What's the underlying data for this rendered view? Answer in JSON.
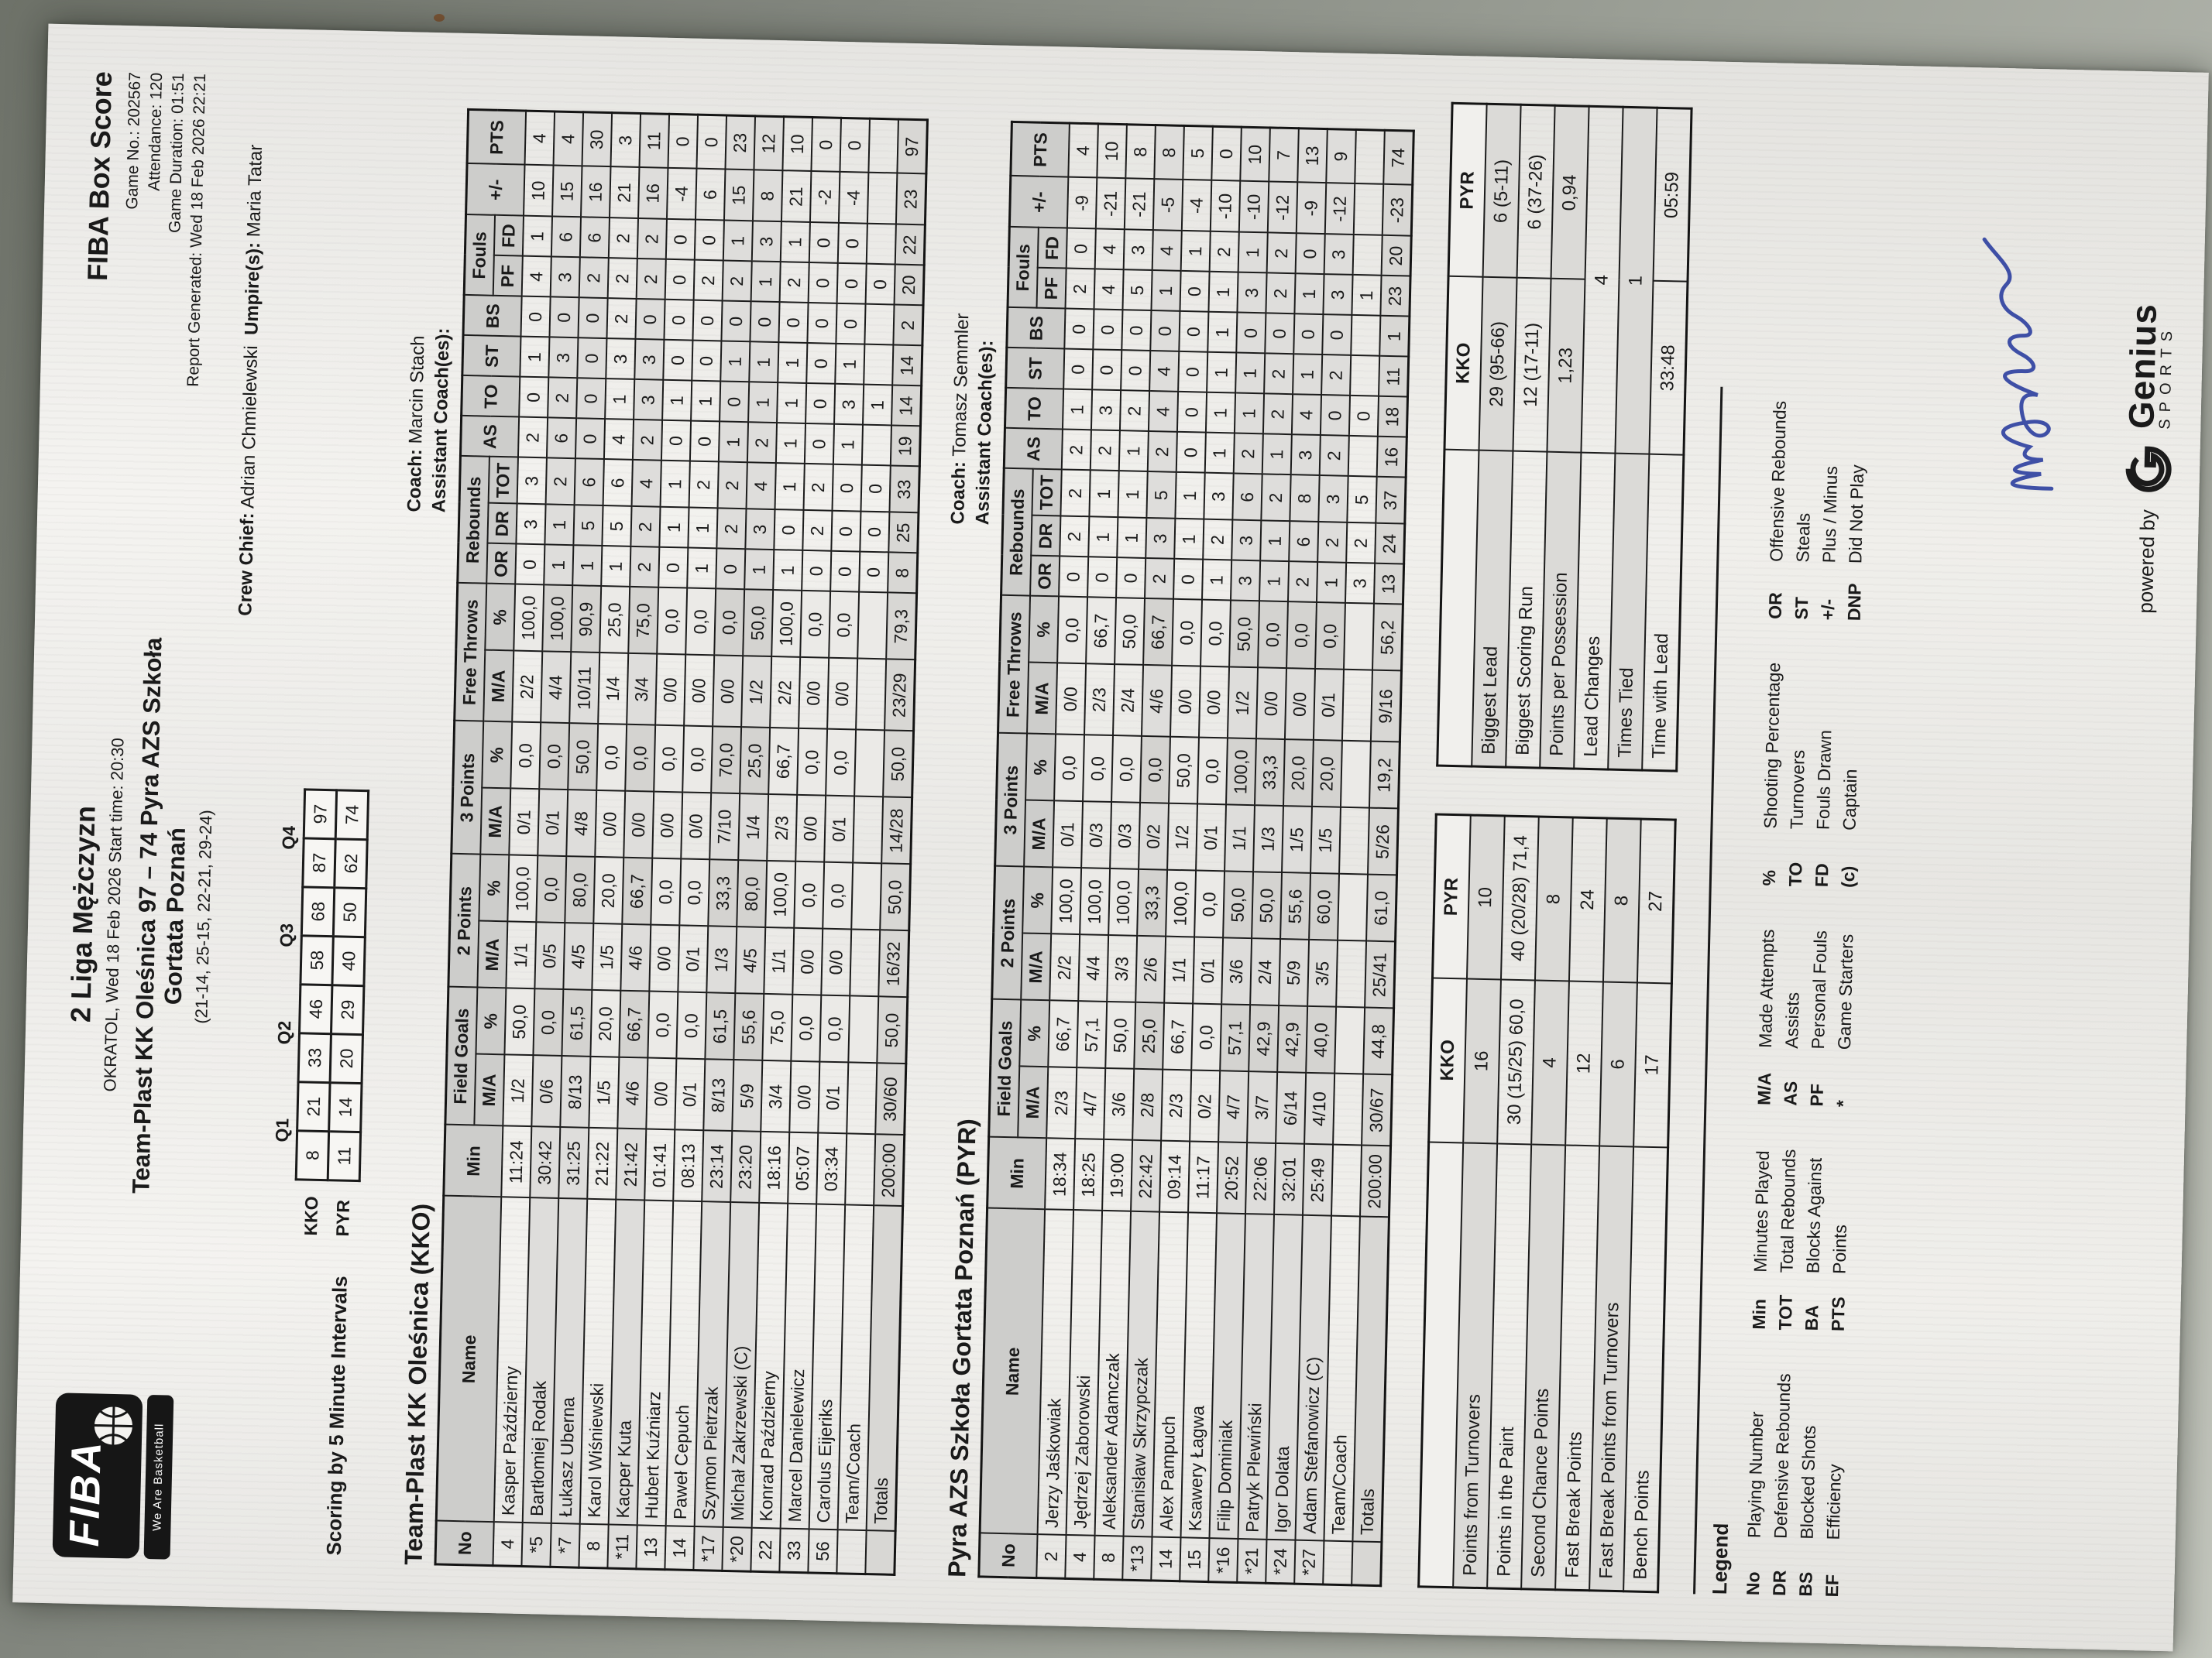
{
  "page": {
    "league": "2 Liga Mężczyzn",
    "venue_line": "OKRATOL, Wed 18 Feb 2026 Start time: 20:30",
    "match_line": "Team-Plast KK Oleśnica 97 – 74 Pyra AZS Szkoła",
    "match_line2": "Gortata Poznań",
    "quarters_line": "(21-14, 25-15, 22-21, 29-24)",
    "report_title": "FIBA Box Score",
    "game_no": "Game No.: 202567",
    "attendance": "Attendance: 120",
    "duration": "Game Duration: 01:51",
    "generated": "Report Generated: Wed 18 Feb 2026 22:21",
    "crew_label": "Crew Chief:",
    "crew_name": "Adrian Chmielewski",
    "umpire_label": "Umpire(s):",
    "umpire_name": "Maria Tatar"
  },
  "logo": {
    "fiba": "FIBA",
    "tagline": "We Are Basketball"
  },
  "footer": {
    "powered": "powered by",
    "brand": "Genius",
    "sub": "SPORTS"
  },
  "intervals": {
    "title": "Scoring by 5 Minute Intervals",
    "quarters": [
      "Q1",
      "Q2",
      "Q3",
      "Q4"
    ],
    "rows": [
      {
        "team": "KKO",
        "vals": [
          "8",
          "21",
          "33",
          "46",
          "58",
          "68",
          "87",
          "97"
        ]
      },
      {
        "team": "PYR",
        "vals": [
          "11",
          "14",
          "20",
          "29",
          "40",
          "50",
          "62",
          "74"
        ]
      }
    ]
  },
  "box": {
    "h_no": "No",
    "h_name": "Name",
    "h_min": "Min",
    "h_fg": "Field Goals",
    "h_2p": "2 Points",
    "h_3p": "3 Points",
    "h_ft": "Free Throws",
    "h_ma": "M/A",
    "h_pct": "%",
    "h_reb": "Rebounds",
    "h_or": "OR",
    "h_dr": "DR",
    "h_tot": "TOT",
    "h_as": "AS",
    "h_to": "TO",
    "h_st": "ST",
    "h_bs": "BS",
    "h_fouls": "Fouls",
    "h_pf": "PF",
    "h_fd": "FD",
    "h_pm": "+/-",
    "h_pts": "PTS",
    "row_keys": [
      "no",
      "name",
      "min",
      "fg",
      "fgp",
      "p2",
      "p2p",
      "p3",
      "p3p",
      "ft",
      "ftp",
      "or",
      "dr",
      "tot",
      "as",
      "to",
      "st",
      "bs",
      "pf",
      "fd",
      "pm",
      "pts"
    ],
    "pct_keys": [
      "fgp",
      "p2p",
      "p3p",
      "ftp"
    ]
  },
  "kko": {
    "heading": "Team-Plast KK Oleśnica (KKO)",
    "coach_label": "Coach:",
    "coach": "Marcin Stach",
    "assistant_label": "Assistant Coach(es):",
    "players": [
      {
        "cls": "",
        "no": "4",
        "name": "Kasper Październy",
        "min": "11:24",
        "fg": "1/2",
        "fgp": "50,0",
        "p2": "1/1",
        "p2p": "100,0",
        "p3": "0/1",
        "p3p": "0,0",
        "ft": "2/2",
        "ftp": "100,0",
        "or": "0",
        "dr": "3",
        "tot": "3",
        "as": "2",
        "to": "0",
        "st": "1",
        "bs": "0",
        "pf": "4",
        "fd": "1",
        "pm": "10",
        "pts": "4"
      },
      {
        "cls": "starter",
        "no": "*5",
        "name": "Bartłomiej Rodak",
        "min": "30:42",
        "fg": "0/6",
        "fgp": "0,0",
        "p2": "0/5",
        "p2p": "0,0",
        "p3": "0/1",
        "p3p": "0,0",
        "ft": "4/4",
        "ftp": "100,0",
        "or": "1",
        "dr": "1",
        "tot": "2",
        "as": "6",
        "to": "2",
        "st": "3",
        "bs": "0",
        "pf": "3",
        "fd": "6",
        "pm": "15",
        "pts": "4"
      },
      {
        "cls": "starter",
        "no": "*7",
        "name": "Łukasz Uberna",
        "min": "31:25",
        "fg": "8/13",
        "fgp": "61,5",
        "p2": "4/5",
        "p2p": "80,0",
        "p3": "4/8",
        "p3p": "50,0",
        "ft": "10/11",
        "ftp": "90,9",
        "or": "1",
        "dr": "5",
        "tot": "6",
        "as": "0",
        "to": "0",
        "st": "0",
        "bs": "0",
        "pf": "2",
        "fd": "6",
        "pm": "16",
        "pts": "30"
      },
      {
        "cls": "",
        "no": "8",
        "name": "Karol Wiśniewski",
        "min": "21:22",
        "fg": "1/5",
        "fgp": "20,0",
        "p2": "1/5",
        "p2p": "20,0",
        "p3": "0/0",
        "p3p": "0,0",
        "ft": "1/4",
        "ftp": "25,0",
        "or": "1",
        "dr": "5",
        "tot": "6",
        "as": "4",
        "to": "1",
        "st": "3",
        "bs": "2",
        "pf": "2",
        "fd": "2",
        "pm": "21",
        "pts": "3"
      },
      {
        "cls": "starter",
        "no": "*11",
        "name": "Kacper Kuta",
        "min": "21:42",
        "fg": "4/6",
        "fgp": "66,7",
        "p2": "4/6",
        "p2p": "66,7",
        "p3": "0/0",
        "p3p": "0,0",
        "ft": "3/4",
        "ftp": "75,0",
        "or": "2",
        "dr": "2",
        "tot": "4",
        "as": "2",
        "to": "3",
        "st": "3",
        "bs": "0",
        "pf": "2",
        "fd": "2",
        "pm": "16",
        "pts": "11"
      },
      {
        "cls": "",
        "no": "13",
        "name": "Hubert Kuźniarz",
        "min": "01:41",
        "fg": "0/0",
        "fgp": "0,0",
        "p2": "0/0",
        "p2p": "0,0",
        "p3": "0/0",
        "p3p": "0,0",
        "ft": "0/0",
        "ftp": "0,0",
        "or": "0",
        "dr": "1",
        "tot": "1",
        "as": "0",
        "to": "1",
        "st": "0",
        "bs": "0",
        "pf": "0",
        "fd": "0",
        "pm": "-4",
        "pts": "0"
      },
      {
        "cls": "",
        "no": "14",
        "name": "Paweł Cepuch",
        "min": "08:13",
        "fg": "0/1",
        "fgp": "0,0",
        "p2": "0/1",
        "p2p": "0,0",
        "p3": "0/0",
        "p3p": "0,0",
        "ft": "0/0",
        "ftp": "0,0",
        "or": "1",
        "dr": "1",
        "tot": "2",
        "as": "0",
        "to": "1",
        "st": "0",
        "bs": "0",
        "pf": "2",
        "fd": "0",
        "pm": "6",
        "pts": "0"
      },
      {
        "cls": "starter",
        "no": "*17",
        "name": "Szymon Pietrzak",
        "min": "23:14",
        "fg": "8/13",
        "fgp": "61,5",
        "p2": "1/3",
        "p2p": "33,3",
        "p3": "7/10",
        "p3p": "70,0",
        "ft": "0/0",
        "ftp": "0,0",
        "or": "0",
        "dr": "2",
        "tot": "2",
        "as": "1",
        "to": "0",
        "st": "1",
        "bs": "0",
        "pf": "2",
        "fd": "1",
        "pm": "15",
        "pts": "23"
      },
      {
        "cls": "starter",
        "no": "*20",
        "name": "Michał Zakrzewski (C)",
        "min": "23:20",
        "fg": "5/9",
        "fgp": "55,6",
        "p2": "4/5",
        "p2p": "80,0",
        "p3": "1/4",
        "p3p": "25,0",
        "ft": "1/2",
        "ftp": "50,0",
        "or": "1",
        "dr": "3",
        "tot": "4",
        "as": "2",
        "to": "1",
        "st": "1",
        "bs": "0",
        "pf": "1",
        "fd": "3",
        "pm": "8",
        "pts": "12"
      },
      {
        "cls": "",
        "no": "22",
        "name": "Konrad Październy",
        "min": "18:16",
        "fg": "3/4",
        "fgp": "75,0",
        "p2": "1/1",
        "p2p": "100,0",
        "p3": "2/3",
        "p3p": "66,7",
        "ft": "2/2",
        "ftp": "100,0",
        "or": "1",
        "dr": "0",
        "tot": "1",
        "as": "1",
        "to": "1",
        "st": "1",
        "bs": "0",
        "pf": "2",
        "fd": "1",
        "pm": "21",
        "pts": "10"
      },
      {
        "cls": "",
        "no": "33",
        "name": "Marcel Danielewicz",
        "min": "05:07",
        "fg": "0/0",
        "fgp": "0,0",
        "p2": "0/0",
        "p2p": "0,0",
        "p3": "0/0",
        "p3p": "0,0",
        "ft": "0/0",
        "ftp": "0,0",
        "or": "0",
        "dr": "2",
        "tot": "2",
        "as": "0",
        "to": "0",
        "st": "0",
        "bs": "0",
        "pf": "0",
        "fd": "0",
        "pm": "-2",
        "pts": "0"
      },
      {
        "cls": "",
        "no": "56",
        "name": "Carolus Eijeriks",
        "min": "03:34",
        "fg": "0/1",
        "fgp": "0,0",
        "p2": "0/0",
        "p2p": "0,0",
        "p3": "0/1",
        "p3p": "0,0",
        "ft": "0/0",
        "ftp": "0,0",
        "or": "0",
        "dr": "0",
        "tot": "0",
        "as": "1",
        "to": "3",
        "st": "1",
        "bs": "0",
        "pf": "0",
        "fd": "0",
        "pm": "-4",
        "pts": "0"
      },
      {
        "cls": "team-row",
        "no": "",
        "name": "Team/Coach",
        "min": "",
        "fg": "",
        "fgp": "",
        "p2": "",
        "p2p": "",
        "p3": "",
        "p3p": "",
        "ft": "",
        "ftp": "",
        "or": "0",
        "dr": "0",
        "tot": "0",
        "as": "",
        "to": "1",
        "st": "",
        "bs": "",
        "pf": "0",
        "fd": "",
        "pm": "",
        "pts": ""
      },
      {
        "cls": "totals",
        "no": "",
        "name": "Totals",
        "min": "200:00",
        "fg": "30/60",
        "fgp": "50,0",
        "p2": "16/32",
        "p2p": "50,0",
        "p3": "14/28",
        "p3p": "50,0",
        "ft": "23/29",
        "ftp": "79,3",
        "or": "8",
        "dr": "25",
        "tot": "33",
        "as": "19",
        "to": "14",
        "st": "14",
        "bs": "2",
        "pf": "20",
        "fd": "22",
        "pm": "23",
        "pts": "97"
      }
    ]
  },
  "pyr": {
    "heading": "Pyra AZS Szkoła Gortata Poznań (PYR)",
    "coach_label": "Coach:",
    "coach": "Tomasz Semmler",
    "assistant_label": "Assistant Coach(es):",
    "players": [
      {
        "cls": "",
        "no": "2",
        "name": "Jerzy Jaśkowiak",
        "min": "18:34",
        "fg": "2/3",
        "fgp": "66,7",
        "p2": "2/2",
        "p2p": "100,0",
        "p3": "0/1",
        "p3p": "0,0",
        "ft": "0/0",
        "ftp": "0,0",
        "or": "0",
        "dr": "2",
        "tot": "2",
        "as": "2",
        "to": "1",
        "st": "0",
        "bs": "0",
        "pf": "2",
        "fd": "0",
        "pm": "-9",
        "pts": "4"
      },
      {
        "cls": "",
        "no": "4",
        "name": "Jędrzej Zaborowski",
        "min": "18:25",
        "fg": "4/7",
        "fgp": "57,1",
        "p2": "4/4",
        "p2p": "100,0",
        "p3": "0/3",
        "p3p": "0,0",
        "ft": "2/3",
        "ftp": "66,7",
        "or": "0",
        "dr": "1",
        "tot": "1",
        "as": "2",
        "to": "3",
        "st": "0",
        "bs": "0",
        "pf": "4",
        "fd": "4",
        "pm": "-21",
        "pts": "10"
      },
      {
        "cls": "",
        "no": "8",
        "name": "Aleksander Adamczak",
        "min": "19:00",
        "fg": "3/6",
        "fgp": "50,0",
        "p2": "3/3",
        "p2p": "100,0",
        "p3": "0/3",
        "p3p": "0,0",
        "ft": "2/4",
        "ftp": "50,0",
        "or": "0",
        "dr": "1",
        "tot": "1",
        "as": "1",
        "to": "2",
        "st": "0",
        "bs": "0",
        "pf": "5",
        "fd": "3",
        "pm": "-21",
        "pts": "8"
      },
      {
        "cls": "starter",
        "no": "*13",
        "name": "Stanisław Skrzypczak",
        "min": "22:42",
        "fg": "2/8",
        "fgp": "25,0",
        "p2": "2/6",
        "p2p": "33,3",
        "p3": "0/2",
        "p3p": "0,0",
        "ft": "4/6",
        "ftp": "66,7",
        "or": "2",
        "dr": "3",
        "tot": "5",
        "as": "2",
        "to": "4",
        "st": "4",
        "bs": "0",
        "pf": "1",
        "fd": "4",
        "pm": "-5",
        "pts": "8"
      },
      {
        "cls": "",
        "no": "14",
        "name": "Alex Pampuch",
        "min": "09:14",
        "fg": "2/3",
        "fgp": "66,7",
        "p2": "1/1",
        "p2p": "100,0",
        "p3": "1/2",
        "p3p": "50,0",
        "ft": "0/0",
        "ftp": "0,0",
        "or": "0",
        "dr": "1",
        "tot": "1",
        "as": "0",
        "to": "0",
        "st": "0",
        "bs": "0",
        "pf": "0",
        "fd": "1",
        "pm": "-4",
        "pts": "5"
      },
      {
        "cls": "",
        "no": "15",
        "name": "Ksawery Łagwa",
        "min": "11:17",
        "fg": "0/2",
        "fgp": "0,0",
        "p2": "0/1",
        "p2p": "0,0",
        "p3": "0/1",
        "p3p": "0,0",
        "ft": "0/0",
        "ftp": "0,0",
        "or": "1",
        "dr": "2",
        "tot": "3",
        "as": "1",
        "to": "1",
        "st": "1",
        "bs": "1",
        "pf": "1",
        "fd": "2",
        "pm": "-10",
        "pts": "0"
      },
      {
        "cls": "starter",
        "no": "*16",
        "name": "Filip Dominiak",
        "min": "20:52",
        "fg": "4/7",
        "fgp": "57,1",
        "p2": "3/6",
        "p2p": "50,0",
        "p3": "1/1",
        "p3p": "100,0",
        "ft": "1/2",
        "ftp": "50,0",
        "or": "3",
        "dr": "3",
        "tot": "6",
        "as": "2",
        "to": "1",
        "st": "1",
        "bs": "0",
        "pf": "3",
        "fd": "1",
        "pm": "-10",
        "pts": "10"
      },
      {
        "cls": "starter",
        "no": "*21",
        "name": "Patryk Plewiński",
        "min": "22:06",
        "fg": "3/7",
        "fgp": "42,9",
        "p2": "2/4",
        "p2p": "50,0",
        "p3": "1/3",
        "p3p": "33,3",
        "ft": "0/0",
        "ftp": "0,0",
        "or": "1",
        "dr": "1",
        "tot": "2",
        "as": "1",
        "to": "2",
        "st": "2",
        "bs": "0",
        "pf": "2",
        "fd": "2",
        "pm": "-12",
        "pts": "7"
      },
      {
        "cls": "starter",
        "no": "*24",
        "name": "Igor Dolata",
        "min": "32:01",
        "fg": "6/14",
        "fgp": "42,9",
        "p2": "5/9",
        "p2p": "55,6",
        "p3": "1/5",
        "p3p": "20,0",
        "ft": "0/0",
        "ftp": "0,0",
        "or": "2",
        "dr": "6",
        "tot": "8",
        "as": "3",
        "to": "4",
        "st": "1",
        "bs": "0",
        "pf": "1",
        "fd": "0",
        "pm": "-9",
        "pts": "13"
      },
      {
        "cls": "starter",
        "no": "*27",
        "name": "Adam Stefanowicz (C)",
        "min": "25:49",
        "fg": "4/10",
        "fgp": "40,0",
        "p2": "3/5",
        "p2p": "60,0",
        "p3": "1/5",
        "p3p": "20,0",
        "ft": "0/1",
        "ftp": "0,0",
        "or": "1",
        "dr": "2",
        "tot": "3",
        "as": "2",
        "to": "0",
        "st": "2",
        "bs": "0",
        "pf": "3",
        "fd": "3",
        "pm": "-12",
        "pts": "9"
      },
      {
        "cls": "team-row",
        "no": "",
        "name": "Team/Coach",
        "min": "",
        "fg": "",
        "fgp": "",
        "p2": "",
        "p2p": "",
        "p3": "",
        "p3p": "",
        "ft": "",
        "ftp": "",
        "or": "3",
        "dr": "2",
        "tot": "5",
        "as": "",
        "to": "0",
        "st": "",
        "bs": "",
        "pf": "1",
        "fd": "",
        "pm": "",
        "pts": ""
      },
      {
        "cls": "totals",
        "no": "",
        "name": "Totals",
        "min": "200:00",
        "fg": "30/67",
        "fgp": "44,8",
        "p2": "25/41",
        "p2p": "61,0",
        "p3": "5/26",
        "p3p": "19,2",
        "ft": "9/16",
        "ftp": "56,2",
        "or": "13",
        "dr": "24",
        "tot": "37",
        "as": "16",
        "to": "18",
        "st": "11",
        "bs": "1",
        "pf": "23",
        "fd": "20",
        "pm": "-23",
        "pts": "74"
      }
    ]
  },
  "summary_left": {
    "cols": [
      "KKO",
      "PYR"
    ],
    "rows": [
      {
        "label": "Points from Turnovers",
        "kko": "16",
        "pyr": "10"
      },
      {
        "label": "Points in the Paint",
        "kko": "30 (15/25) 60,0",
        "pyr": "40 (20/28) 71,4"
      },
      {
        "label": "Second Chance Points",
        "kko": "4",
        "pyr": "8"
      },
      {
        "label": "Fast Break Points",
        "kko": "12",
        "pyr": "24"
      },
      {
        "label": "Fast Break Points from Turnovers",
        "kko": "6",
        "pyr": "8"
      },
      {
        "label": "Bench Points",
        "kko": "17",
        "pyr": "27"
      }
    ]
  },
  "summary_right": {
    "cols": [
      "KKO",
      "PYR"
    ],
    "rows": [
      {
        "label": "Biggest Lead",
        "kko": "29 (95-66)",
        "pyr": "6 (5-11)"
      },
      {
        "label": "Biggest Scoring Run",
        "kko": "12 (17-11)",
        "pyr": "6 (37-26)"
      },
      {
        "label": "Points per Possession",
        "kko": "1,23",
        "pyr": "0,94"
      },
      {
        "label": "Lead Changes",
        "kko": "4",
        "span": true
      },
      {
        "label": "Times Tied",
        "kko": "1",
        "span": true
      },
      {
        "label": "Time with Lead",
        "kko": "33:48",
        "pyr": "05:59"
      }
    ]
  },
  "legend": {
    "title": "Legend",
    "cols": [
      [
        {
          "a": "No",
          "t": "Playing Number"
        },
        {
          "a": "DR",
          "t": "Defensive Rebounds"
        },
        {
          "a": "BS",
          "t": "Blocked Shots"
        },
        {
          "a": "EF",
          "t": "Efficiency"
        }
      ],
      [
        {
          "a": "Min",
          "t": "Minutes Played"
        },
        {
          "a": "TOT",
          "t": "Total Rebounds"
        },
        {
          "a": "BA",
          "t": "Blocks Against"
        },
        {
          "a": "PTS",
          "t": "Points"
        }
      ],
      [
        {
          "a": "M/A",
          "t": "Made Attempts"
        },
        {
          "a": "AS",
          "t": "Assists"
        },
        {
          "a": "PF",
          "t": "Personal Fouls"
        },
        {
          "a": "*",
          "t": "Game Starters"
        }
      ],
      [
        {
          "a": "%",
          "t": "Shooting Percentage"
        },
        {
          "a": "TO",
          "t": "Turnovers"
        },
        {
          "a": "FD",
          "t": "Fouls Drawn"
        },
        {
          "a": "(c)",
          "t": "Captain"
        }
      ],
      [
        {
          "a": "OR",
          "t": "Offensive Rebounds"
        },
        {
          "a": "ST",
          "t": "Steals"
        },
        {
          "a": "+/-",
          "t": "Plus / Minus"
        },
        {
          "a": "DNP",
          "t": "Did Not Play"
        }
      ]
    ]
  }
}
